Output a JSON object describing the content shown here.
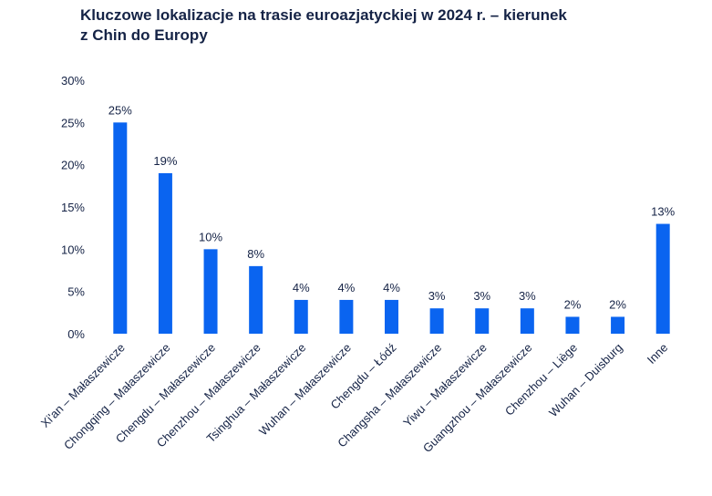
{
  "chart_data": {
    "type": "bar",
    "title_line1": "Kluczowe lokalizacje na trasie euroazjatyckiej w 2024 r. – kierunek",
    "title_line2": "z Chin do Europy",
    "categories": [
      "Xi'an – Małaszewicze",
      "Chongqing – Małaszewicze",
      "Chengdu – Małaszewicze",
      "Chenzhou – Małaszewicze",
      "Tsinghua – Małaszewicze",
      "Wuhan – Małaszewicze",
      "Chengdu – Łódź",
      "Changsha – Małaszewicze",
      "Yiwu – Małaszewicze",
      "Guangzhou – Małaszewicze",
      "Chenzhou – Liège",
      "Wuhan – Duisburg",
      "Inne"
    ],
    "values": [
      25,
      19,
      10,
      8,
      4,
      4,
      4,
      3,
      3,
      3,
      2,
      2,
      13
    ],
    "value_labels": [
      "25%",
      "19%",
      "10%",
      "8%",
      "4%",
      "4%",
      "4%",
      "3%",
      "3%",
      "3%",
      "2%",
      "2%",
      "13%"
    ],
    "ylim": [
      0,
      30
    ],
    "yticks": [
      0,
      5,
      10,
      15,
      20,
      25,
      30
    ],
    "ytick_labels": [
      "0%",
      "5%",
      "10%",
      "15%",
      "20%",
      "25%",
      "30%"
    ],
    "bar_color": "#0a64f0",
    "grid": false,
    "xlabel": "",
    "ylabel": ""
  }
}
